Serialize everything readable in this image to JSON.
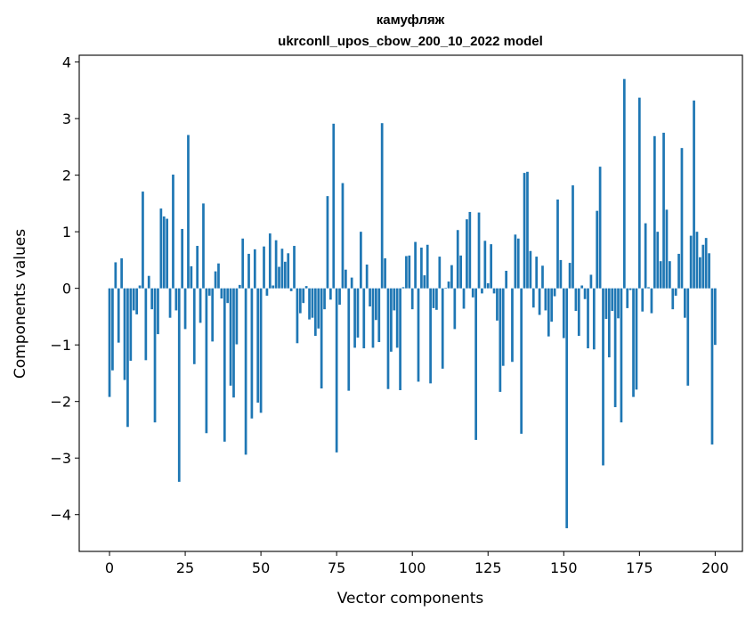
{
  "chart_data": {
    "type": "bar",
    "title": "камуфляж",
    "subtitle": "ukrconll_upos_cbow_200_10_2022 model",
    "xlabel": "Vector components",
    "ylabel": "Components values",
    "xlim": [
      -10,
      209
    ],
    "ylim": [
      -4.65,
      4.12
    ],
    "xticks": [
      0,
      25,
      50,
      75,
      100,
      125,
      150,
      175,
      200
    ],
    "yticks": [
      -4,
      -3,
      -2,
      -1,
      0,
      1,
      2,
      3,
      4
    ],
    "xtick_labels": [
      "0",
      "25",
      "50",
      "75",
      "100",
      "125",
      "150",
      "175",
      "200"
    ],
    "ytick_labels": [
      "−4",
      "−3",
      "−2",
      "−1",
      "0",
      "1",
      "2",
      "3",
      "4"
    ],
    "bar_color": "#1f77b4",
    "grid": false,
    "values": [
      -1.92,
      -1.45,
      0.46,
      -0.96,
      0.53,
      -1.62,
      -2.45,
      -1.28,
      -0.39,
      -0.46,
      0.05,
      1.71,
      -1.27,
      0.22,
      -0.37,
      -2.37,
      -0.81,
      1.41,
      1.27,
      1.23,
      -0.52,
      2.01,
      -0.39,
      -3.42,
      1.05,
      -0.72,
      2.71,
      0.39,
      -1.34,
      0.75,
      -0.61,
      1.5,
      -2.56,
      -0.13,
      -0.94,
      0.3,
      0.44,
      -0.18,
      -2.71,
      -0.26,
      -1.72,
      -1.93,
      -0.99,
      0.06,
      0.88,
      -2.94,
      0.61,
      -2.3,
      0.69,
      -2.02,
      -2.2,
      0.74,
      -0.13,
      0.97,
      0.05,
      0.85,
      0.38,
      0.7,
      0.47,
      0.62,
      -0.05,
      0.75,
      -0.97,
      -0.44,
      -0.26,
      0.04,
      -0.55,
      -0.52,
      -0.84,
      -0.71,
      -1.77,
      -0.37,
      1.63,
      -0.2,
      2.91,
      -2.9,
      -0.29,
      1.86,
      0.33,
      -1.81,
      0.19,
      -1.05,
      -0.87,
      1.0,
      -1.06,
      0.42,
      -0.32,
      -1.05,
      -0.56,
      -0.95,
      2.92,
      0.53,
      -1.78,
      -1.12,
      -0.39,
      -1.05,
      -1.8,
      0.02,
      0.57,
      0.58,
      -0.37,
      0.82,
      -1.65,
      0.72,
      0.23,
      0.77,
      -1.68,
      -0.35,
      -0.38,
      0.56,
      -1.42,
      0.01,
      0.12,
      0.41,
      -0.72,
      1.03,
      0.58,
      -0.36,
      1.22,
      1.35,
      -0.16,
      -2.68,
      1.34,
      -0.09,
      0.84,
      0.09,
      0.78,
      -0.09,
      -0.57,
      -1.83,
      -1.37,
      0.31,
      0.0,
      -1.3,
      0.95,
      0.88,
      -2.57,
      2.04,
      2.06,
      0.66,
      -0.34,
      0.56,
      -0.47,
      0.4,
      -0.39,
      -0.85,
      -0.59,
      -0.14,
      1.57,
      0.5,
      -0.88,
      -4.24,
      0.45,
      1.82,
      -0.4,
      -0.84,
      0.05,
      -0.19,
      -1.06,
      0.24,
      -1.08,
      1.37,
      2.15,
      -3.13,
      -0.54,
      -1.22,
      -0.4,
      -2.1,
      -0.53,
      -2.37,
      3.7,
      -0.35,
      -0.03,
      -1.92,
      -1.79,
      3.37,
      -0.41,
      1.15,
      0.02,
      -0.44,
      2.69,
      1.0,
      0.48,
      2.75,
      1.39,
      0.48,
      -0.37,
      -0.13,
      0.61,
      2.48,
      -0.52,
      -1.72,
      0.93,
      3.32,
      1.0,
      0.55,
      0.77,
      0.89,
      0.62,
      -2.76,
      -1.0
    ]
  }
}
